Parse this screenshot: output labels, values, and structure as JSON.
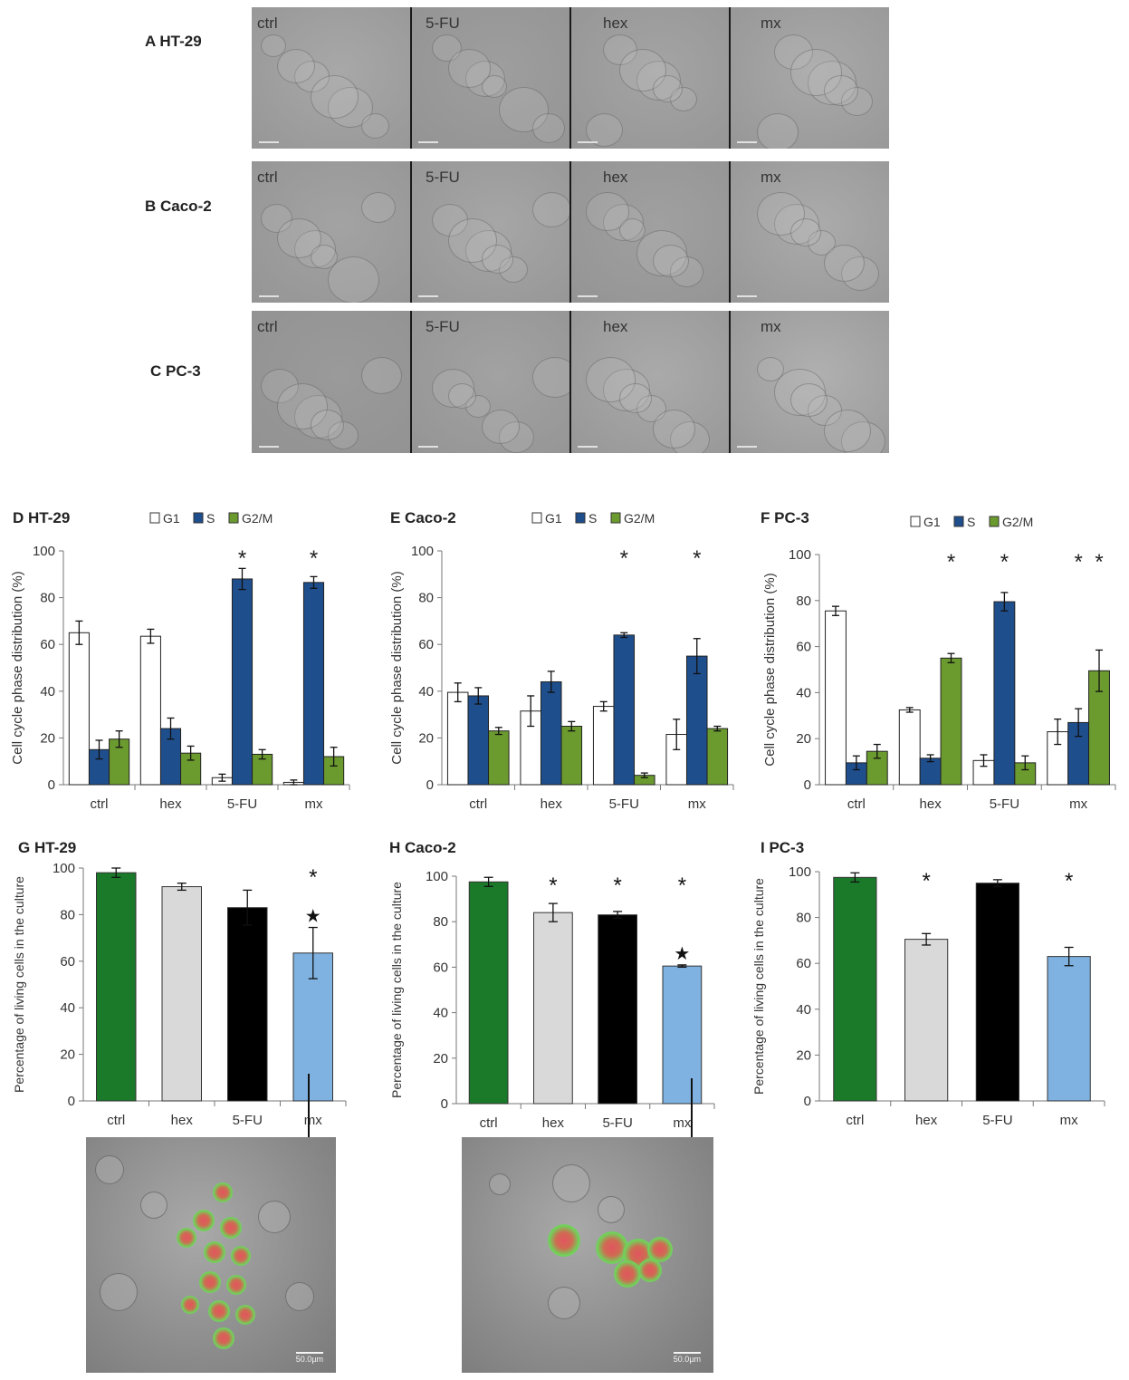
{
  "microscopy": {
    "rows": [
      {
        "label": "A  HT-29",
        "conditions": [
          "ctrl",
          "5-FU",
          "hex",
          "mx"
        ]
      },
      {
        "label": "B Caco-2",
        "conditions": [
          "ctrl",
          "5-FU",
          "hex",
          "mx"
        ]
      },
      {
        "label": "C PC-3",
        "conditions": [
          "ctrl",
          "5-FU",
          "hex",
          "mx"
        ]
      }
    ]
  },
  "fluorescence": {
    "left_scale": "50.0µm",
    "right_scale": "50.0µm"
  },
  "colors": {
    "G1": "#ffffff",
    "S": "#1f4e8c",
    "G2M": "#6b9a2f",
    "ctrl_bar": "#1a7a2a",
    "hex_bar": "#d9d9d9",
    "fu_bar": "#000000",
    "mx_bar": "#7fb2e0"
  },
  "chart_data": [
    {
      "id": "D",
      "type": "bar",
      "title": "D HT-29",
      "categories": [
        "ctrl",
        "hex",
        "5-FU",
        "mx"
      ],
      "ylabel": "Cell cycle phase distribution (%)",
      "ylim": [
        0,
        100
      ],
      "yticks": [
        0,
        20,
        40,
        60,
        80,
        100
      ],
      "legend": "top",
      "series": [
        {
          "name": "G1",
          "values": [
            65,
            63.5,
            3,
            1
          ],
          "errors": [
            5,
            3,
            1.5,
            1
          ]
        },
        {
          "name": "S",
          "values": [
            15,
            24,
            88,
            86.5
          ],
          "errors": [
            4,
            4.5,
            4.5,
            2.5
          ]
        },
        {
          "name": "G2/M",
          "values": [
            19.5,
            13.5,
            13,
            12
          ],
          "errors": [
            3.5,
            3,
            2,
            4
          ]
        }
      ],
      "annotations": [
        {
          "category": "5-FU",
          "series": "S",
          "text": "*"
        },
        {
          "category": "mx",
          "series": "S",
          "text": "*"
        }
      ]
    },
    {
      "id": "E",
      "type": "bar",
      "title": "E Caco-2",
      "categories": [
        "ctrl",
        "hex",
        "5-FU",
        "mx"
      ],
      "ylabel": "Cell cycle phase distribution (%)",
      "ylim": [
        0,
        100
      ],
      "yticks": [
        0,
        20,
        40,
        60,
        80,
        100
      ],
      "legend": "top",
      "series": [
        {
          "name": "G1",
          "values": [
            39.5,
            31.5,
            33.5,
            21.5
          ],
          "errors": [
            4,
            6.5,
            2,
            6.5
          ]
        },
        {
          "name": "S",
          "values": [
            38,
            44,
            64,
            55
          ],
          "errors": [
            3.5,
            4.5,
            1,
            7.5
          ]
        },
        {
          "name": "G2/M",
          "values": [
            23,
            25,
            4,
            24
          ],
          "errors": [
            1.5,
            2,
            1,
            1
          ]
        }
      ],
      "annotations": [
        {
          "category": "5-FU",
          "series": "S",
          "text": "*"
        },
        {
          "category": "mx",
          "series": "S",
          "text": "*"
        }
      ]
    },
    {
      "id": "F",
      "type": "bar",
      "title": "F PC-3",
      "categories": [
        "ctrl",
        "hex",
        "5-FU",
        "mx"
      ],
      "ylabel": "Cell cycle phase distribution (%)",
      "ylim": [
        0,
        100
      ],
      "yticks": [
        0,
        20,
        40,
        60,
        80,
        100
      ],
      "legend": "top",
      "series": [
        {
          "name": "G1",
          "values": [
            75.5,
            32.5,
            10.5,
            23
          ],
          "errors": [
            2,
            1,
            2.5,
            5.5
          ]
        },
        {
          "name": "S",
          "values": [
            9.5,
            11.5,
            79.5,
            27
          ],
          "errors": [
            3,
            1.5,
            4,
            6
          ]
        },
        {
          "name": "G2/M",
          "values": [
            14.5,
            55,
            9.5,
            49.5
          ],
          "errors": [
            3,
            2,
            3,
            9
          ]
        }
      ],
      "annotations": [
        {
          "category": "hex",
          "series": "G2/M",
          "text": "*"
        },
        {
          "category": "5-FU",
          "series": "S",
          "text": "*"
        },
        {
          "category": "mx",
          "series": "S",
          "text": "*"
        },
        {
          "category": "mx",
          "series": "G2/M",
          "text": "*"
        }
      ]
    },
    {
      "id": "G",
      "type": "bar",
      "title": "G HT-29",
      "categories": [
        "ctrl",
        "hex",
        "5-FU",
        "mx"
      ],
      "ylabel": "Percentage of living cells in the culture",
      "ylim": [
        0,
        100
      ],
      "yticks": [
        0,
        20,
        40,
        60,
        80,
        100
      ],
      "values": [
        98,
        92,
        83,
        63.5
      ],
      "errors": [
        2,
        1.5,
        7.5,
        11
      ],
      "annotations": [
        {
          "category": "mx",
          "text": "*"
        },
        {
          "category": "mx",
          "text": "★"
        }
      ]
    },
    {
      "id": "H",
      "type": "bar",
      "title": "H Caco-2",
      "categories": [
        "ctrl",
        "hex",
        "5-FU",
        "mx"
      ],
      "ylabel": "Percentage of living cells in the culture",
      "ylim": [
        0,
        100
      ],
      "yticks": [
        0,
        20,
        40,
        60,
        80,
        100
      ],
      "values": [
        97.5,
        84,
        83,
        60.5
      ],
      "errors": [
        2,
        4,
        1.5,
        0.5
      ],
      "annotations": [
        {
          "category": "hex",
          "text": "*"
        },
        {
          "category": "5-FU",
          "text": "*"
        },
        {
          "category": "mx",
          "text": "*"
        },
        {
          "category": "mx",
          "text": "★"
        }
      ]
    },
    {
      "id": "I",
      "type": "bar",
      "title": "I PC-3",
      "categories": [
        "ctrl",
        "hex",
        "5-FU",
        "mx"
      ],
      "ylabel": "Percentage of living cells in the culture",
      "ylim": [
        0,
        100
      ],
      "yticks": [
        0,
        20,
        40,
        60,
        80,
        100
      ],
      "values": [
        97.5,
        70.5,
        95,
        63
      ],
      "errors": [
        2,
        2.5,
        1.5,
        4
      ],
      "annotations": [
        {
          "category": "hex",
          "text": "*"
        },
        {
          "category": "mx",
          "text": "*"
        }
      ]
    }
  ]
}
